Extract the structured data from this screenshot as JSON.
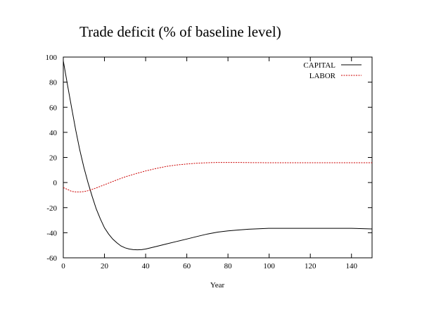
{
  "chart_data": {
    "type": "line",
    "title": "Trade deficit (% of baseline level)",
    "xlabel": "Year",
    "ylabel": "",
    "xlim": [
      0,
      150
    ],
    "ylim": [
      -60,
      100
    ],
    "xticks": [
      0,
      20,
      40,
      60,
      80,
      100,
      120,
      140
    ],
    "yticks": [
      -60,
      -40,
      -20,
      0,
      20,
      40,
      60,
      80,
      100
    ],
    "grid": false,
    "legend": "top-right",
    "series": [
      {
        "name": "CAPITAL",
        "color": "#000000",
        "style": "solid",
        "x": [
          0,
          2,
          4,
          6,
          8,
          10,
          12,
          14,
          16,
          18,
          20,
          22,
          24,
          26,
          28,
          30,
          32,
          34,
          36,
          38,
          40,
          45,
          50,
          55,
          60,
          65,
          70,
          75,
          80,
          85,
          90,
          95,
          100,
          110,
          120,
          130,
          140,
          150
        ],
        "y": [
          97,
          78,
          60,
          42,
          26,
          12,
          0,
          -11,
          -21,
          -29,
          -36,
          -41,
          -45,
          -48,
          -50.5,
          -52,
          -53,
          -53.5,
          -53.6,
          -53.5,
          -53,
          -51,
          -49,
          -47,
          -45,
          -43,
          -41,
          -39.5,
          -38.5,
          -37.8,
          -37.2,
          -36.8,
          -36.5,
          -36.5,
          -36.5,
          -36.5,
          -36.5,
          -37
        ]
      },
      {
        "name": "LABOR",
        "color": "#cc0000",
        "style": "dashed",
        "x": [
          0,
          2,
          4,
          6,
          8,
          10,
          12,
          14,
          16,
          18,
          20,
          25,
          30,
          35,
          40,
          45,
          50,
          55,
          60,
          65,
          70,
          75,
          80,
          85,
          90,
          100,
          110,
          120,
          130,
          140,
          150
        ],
        "y": [
          -4,
          -5.5,
          -7,
          -7.5,
          -7.5,
          -7.2,
          -6.5,
          -5.5,
          -4.3,
          -3,
          -1.8,
          1.5,
          4.5,
          7,
          9.2,
          11.2,
          12.8,
          14,
          14.8,
          15.4,
          15.8,
          16,
          16,
          16,
          15.9,
          15.8,
          15.8,
          15.8,
          15.8,
          15.8,
          15.8
        ]
      }
    ]
  }
}
